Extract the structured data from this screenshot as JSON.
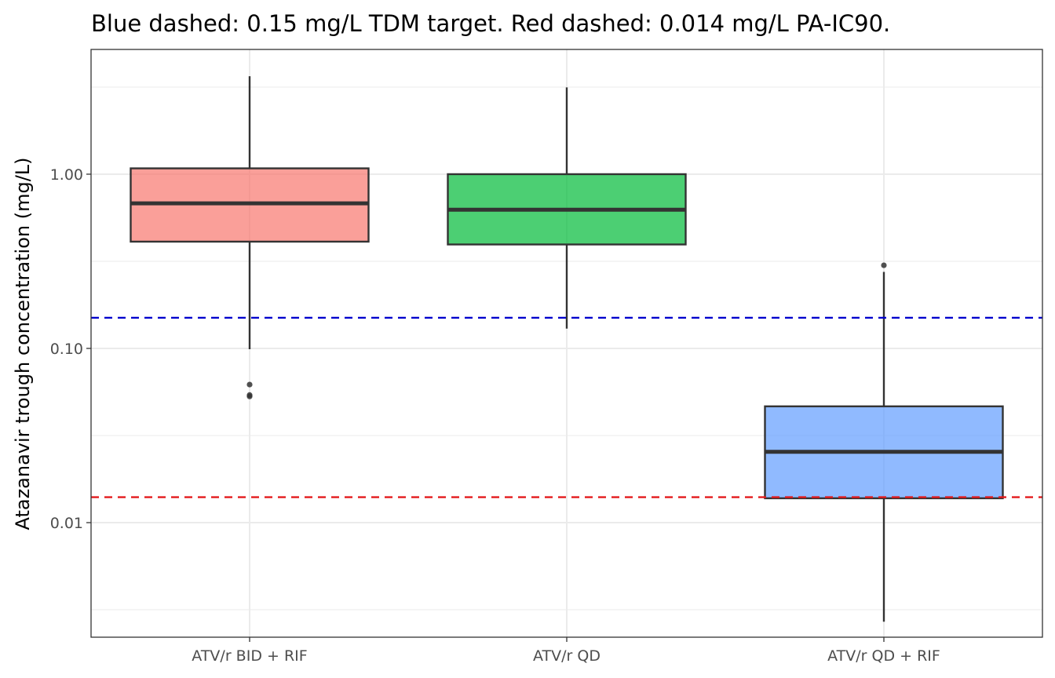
{
  "chart_data": {
    "type": "box",
    "title": "Blue dashed: 0.15 mg/L TDM target. Red dashed: 0.014 mg/L PA-IC90.",
    "xlabel": "",
    "ylabel": "Atazanavir trough concentration (mg/L)",
    "y_scale": "log10",
    "ylim": [
      0.0022,
      5.2
    ],
    "y_ticks": [
      0.01,
      0.1,
      1.0
    ],
    "y_tick_labels": [
      "0.01",
      "0.10",
      "1.00"
    ],
    "grid": true,
    "categories": [
      "ATV/r BID + RIF",
      "ATV/r QD",
      "ATV/r QD + RIF"
    ],
    "series": [
      {
        "category": "ATV/r BID + RIF",
        "color": "#f8766d",
        "whisker_low": 0.099,
        "q1": 0.41,
        "median": 0.68,
        "q3": 1.08,
        "whisker_high": 3.65,
        "outliers": [
          0.062,
          0.054,
          0.053
        ]
      },
      {
        "category": "ATV/r QD",
        "color": "#00ba38",
        "whisker_low": 0.13,
        "q1": 0.395,
        "median": 0.625,
        "q3": 1.0,
        "whisker_high": 3.15,
        "outliers": []
      },
      {
        "category": "ATV/r QD + RIF",
        "color": "#619cff",
        "whisker_low": 0.0027,
        "q1": 0.0138,
        "median": 0.0255,
        "q3": 0.0465,
        "whisker_high": 0.275,
        "outliers": [
          0.3
        ]
      }
    ],
    "reference_lines": [
      {
        "value": 0.15,
        "color": "#0000cd"
      },
      {
        "value": 0.014,
        "color": "#e31a1c"
      }
    ]
  }
}
